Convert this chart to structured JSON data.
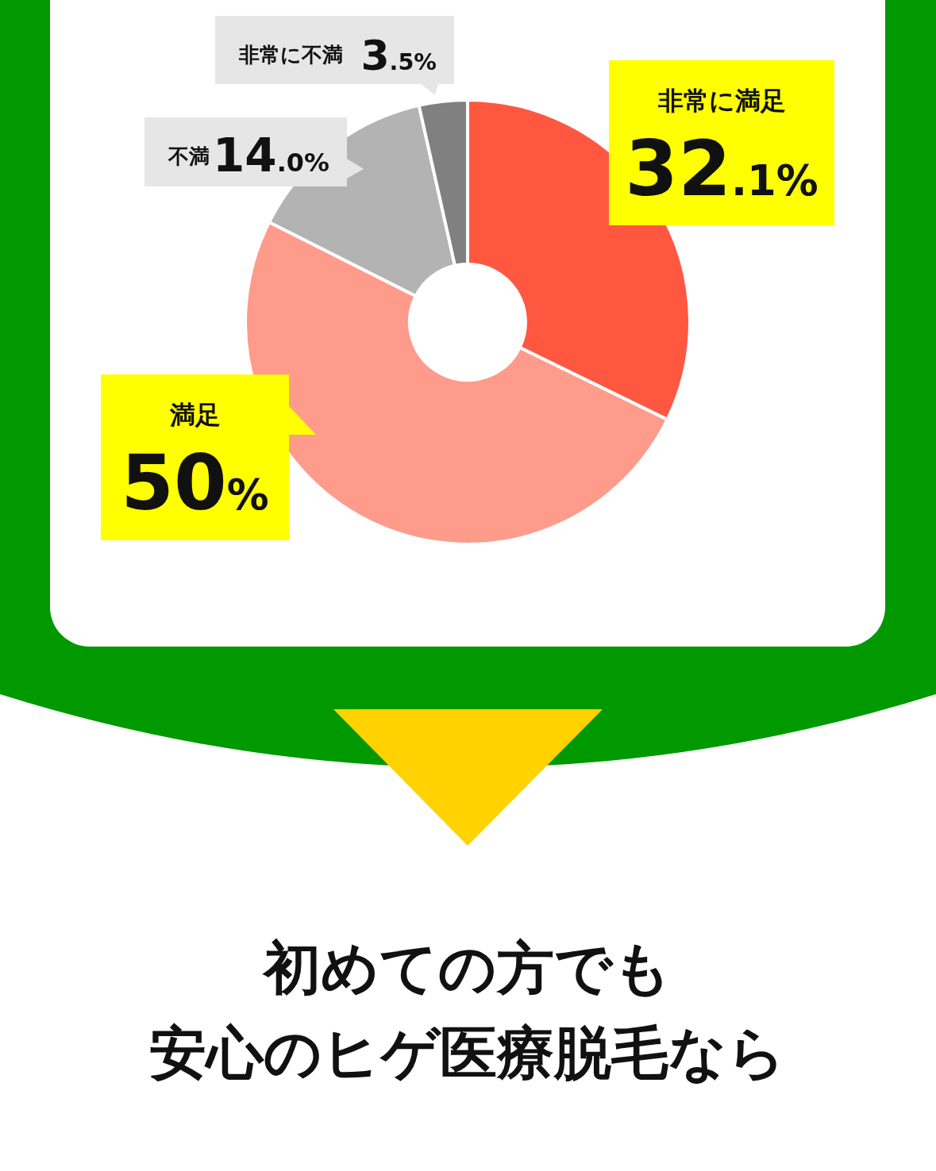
{
  "chart_data": {
    "type": "donut",
    "categories": [
      "非常に満足",
      "満足",
      "不満",
      "非常に不満"
    ],
    "values": [
      32.1,
      50,
      14.0,
      3.5
    ],
    "colors": [
      "#ff5740",
      "#ff9b8b",
      "#b3b3b3",
      "#808080"
    ],
    "value_labels": [
      "32.1%",
      "50%",
      "14.0%",
      "3.5%"
    ],
    "annotations": [
      "初めての方でも",
      "安心のヒゲ医療脱毛なら"
    ]
  }
}
